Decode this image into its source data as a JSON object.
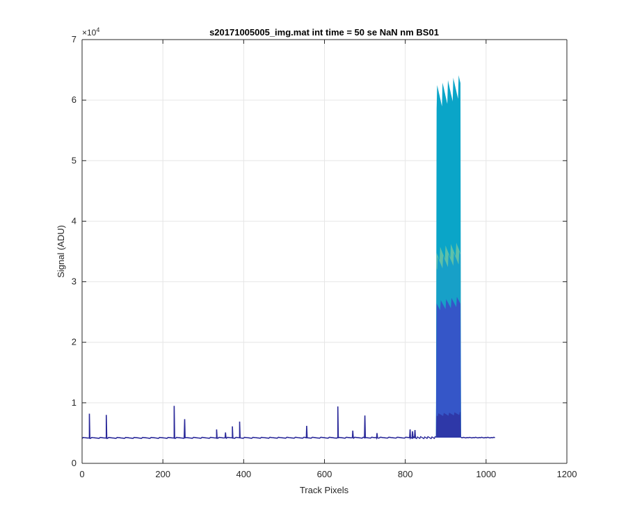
{
  "chart_data": {
    "type": "area",
    "title": "s20171005005_img.mat int time = 50 se  NaN nm BS01",
    "xlabel": "Track Pixels",
    "ylabel": "Signal (ADU)",
    "xlim": [
      0,
      1200
    ],
    "ylim": [
      0,
      70000
    ],
    "x_ticks": [
      0,
      200,
      400,
      600,
      800,
      1000,
      1200
    ],
    "y_ticks": [
      0,
      10000,
      20000,
      30000,
      40000,
      50000,
      60000,
      70000
    ],
    "x_tick_labels": [
      "0",
      "200",
      "400",
      "600",
      "800",
      "1000",
      "1200"
    ],
    "y_tick_labels": [
      "0",
      "1",
      "2",
      "3",
      "4",
      "5",
      "6",
      "7"
    ],
    "y_exponent_label": "×10",
    "y_exponent_power": "4",
    "grid": true,
    "x_data_end": 1023,
    "baseline_start": 4200,
    "baseline_end": 4250,
    "spikes": [
      {
        "x": 18,
        "y": 8200
      },
      {
        "x": 60,
        "y": 8000
      },
      {
        "x": 228,
        "y": 9500
      },
      {
        "x": 254,
        "y": 7300
      },
      {
        "x": 333,
        "y": 5600
      },
      {
        "x": 355,
        "y": 5100
      },
      {
        "x": 372,
        "y": 6100
      },
      {
        "x": 390,
        "y": 6900
      },
      {
        "x": 556,
        "y": 6200
      },
      {
        "x": 633,
        "y": 9400
      },
      {
        "x": 670,
        "y": 5400
      },
      {
        "x": 700,
        "y": 7900
      },
      {
        "x": 730,
        "y": 5000
      },
      {
        "x": 812,
        "y": 5600
      },
      {
        "x": 818,
        "y": 5300
      },
      {
        "x": 824,
        "y": 5500
      }
    ],
    "block": {
      "x_start": 876,
      "x_end": 938,
      "series": [
        {
          "color": "#0aa5c8",
          "level": 60500
        },
        {
          "color": "#5fc0a8",
          "level": 34500
        },
        {
          "color": "#17a0c8",
          "level": 33000
        },
        {
          "color": "#3556c8",
          "level": 26000
        },
        {
          "color": "#2e38a8",
          "level": 8000
        }
      ]
    },
    "colors": {
      "baseline": "#2b2a9a",
      "grid": "#e6e6e6",
      "axis": "#262626"
    }
  }
}
